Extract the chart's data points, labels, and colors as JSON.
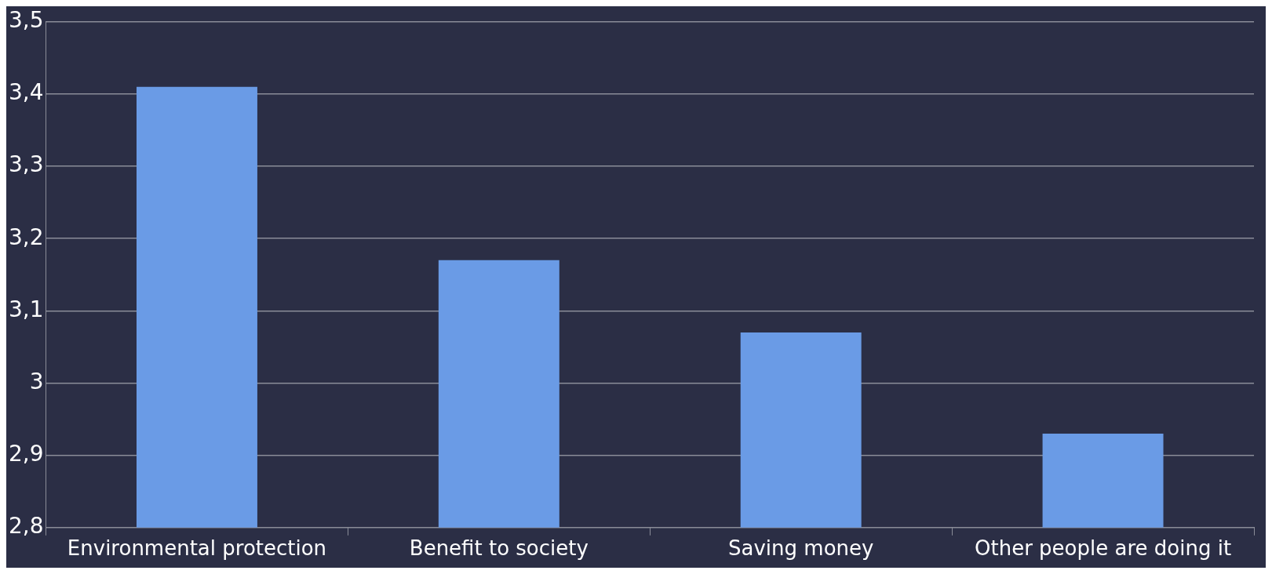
{
  "chart_data": {
    "type": "bar",
    "categories": [
      "Environmental protection",
      "Benefit to society",
      "Saving money",
      "Other people are doing it"
    ],
    "values": [
      3.41,
      3.17,
      3.07,
      2.93
    ],
    "color": "#6a9be6",
    "ylim": [
      2.8,
      3.5
    ],
    "yticks": [
      {
        "value": 2.8,
        "label": "2,8"
      },
      {
        "value": 2.9,
        "label": "2,9"
      },
      {
        "value": 3,
        "label": "3"
      },
      {
        "value": 3.1,
        "label": "3,1"
      },
      {
        "value": 3.2,
        "label": "3,2"
      },
      {
        "value": 3.3,
        "label": "3,3"
      },
      {
        "value": 3.4,
        "label": "3,4"
      },
      {
        "value": 3.5,
        "label": "3,5"
      }
    ],
    "grid": "y"
  }
}
